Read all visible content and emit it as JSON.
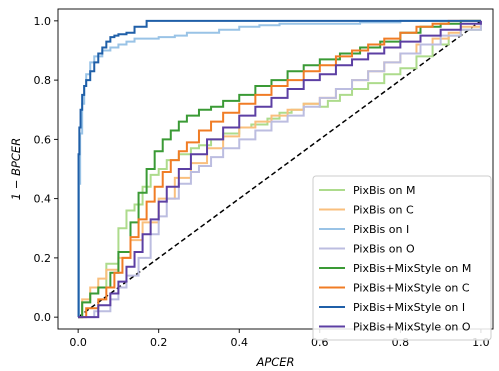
{
  "chart_data": {
    "type": "line",
    "title": "",
    "xlabel": "APCER",
    "ylabel": "1 − BPCER",
    "xlim": [
      -0.05,
      1.03
    ],
    "ylim": [
      -0.04,
      1.04
    ],
    "xticks": [
      0.0,
      0.2,
      0.4,
      0.6,
      0.8,
      1.0
    ],
    "yticks": [
      0.0,
      0.2,
      0.4,
      0.6,
      0.8,
      1.0
    ],
    "grid": false,
    "legend_position": "lower-right",
    "reference_line": {
      "style": "dashed",
      "color": "#000000",
      "x": [
        0,
        1
      ],
      "y": [
        0,
        1
      ]
    },
    "series": [
      {
        "name": "PixBis on M",
        "color": "#addb8c",
        "x": [
          0,
          0.01,
          0.03,
          0.05,
          0.07,
          0.1,
          0.12,
          0.14,
          0.16,
          0.18,
          0.2,
          0.22,
          0.25,
          0.28,
          0.3,
          0.33,
          0.36,
          0.4,
          0.43,
          0.47,
          0.5,
          0.53,
          0.56,
          0.6,
          0.62,
          0.65,
          0.68,
          0.72,
          0.76,
          0.8,
          0.84,
          0.88,
          0.92,
          0.95,
          1.0
        ],
        "y": [
          0,
          0.05,
          0.08,
          0.1,
          0.18,
          0.3,
          0.36,
          0.38,
          0.44,
          0.48,
          0.5,
          0.53,
          0.55,
          0.57,
          0.58,
          0.6,
          0.62,
          0.64,
          0.65,
          0.67,
          0.69,
          0.7,
          0.72,
          0.71,
          0.73,
          0.75,
          0.77,
          0.79,
          0.82,
          0.84,
          0.88,
          0.92,
          0.95,
          0.97,
          1.0
        ]
      },
      {
        "name": "PixBis on C",
        "color": "#f9bf7d",
        "x": [
          0,
          0.01,
          0.03,
          0.05,
          0.07,
          0.1,
          0.13,
          0.16,
          0.2,
          0.24,
          0.28,
          0.32,
          0.36,
          0.4,
          0.44,
          0.48,
          0.52,
          0.56,
          0.6,
          0.64,
          0.68,
          0.72,
          0.76,
          0.8,
          0.84,
          0.88,
          0.92,
          0.95,
          1.0
        ],
        "y": [
          0,
          0.06,
          0.1,
          0.13,
          0.16,
          0.2,
          0.26,
          0.32,
          0.4,
          0.47,
          0.52,
          0.57,
          0.61,
          0.64,
          0.66,
          0.68,
          0.7,
          0.72,
          0.74,
          0.77,
          0.8,
          0.83,
          0.86,
          0.89,
          0.92,
          0.94,
          0.96,
          0.98,
          1.0
        ]
      },
      {
        "name": "PixBis on I",
        "color": "#99c3e6",
        "x": [
          0,
          0.002,
          0.005,
          0.01,
          0.015,
          0.02,
          0.03,
          0.04,
          0.06,
          0.08,
          0.1,
          0.12,
          0.14,
          0.17,
          0.2,
          0.24,
          0.27,
          0.3,
          0.35,
          0.4,
          0.45,
          0.5,
          0.6,
          0.7,
          0.8,
          0.9,
          1.0
        ],
        "y": [
          0,
          0.45,
          0.62,
          0.72,
          0.78,
          0.82,
          0.86,
          0.88,
          0.9,
          0.91,
          0.92,
          0.93,
          0.94,
          0.94,
          0.945,
          0.95,
          0.96,
          0.96,
          0.97,
          0.98,
          0.985,
          0.99,
          0.99,
          0.995,
          1.0,
          1.0,
          1.0
        ]
      },
      {
        "name": "PixBis on O",
        "color": "#bcbde0",
        "x": [
          0,
          0.04,
          0.08,
          0.1,
          0.12,
          0.15,
          0.18,
          0.2,
          0.22,
          0.25,
          0.28,
          0.3,
          0.33,
          0.36,
          0.4,
          0.44,
          0.48,
          0.52,
          0.56,
          0.6,
          0.64,
          0.68,
          0.72,
          0.76,
          0.8,
          0.85,
          0.9,
          0.95,
          1.0
        ],
        "y": [
          0,
          0.02,
          0.06,
          0.1,
          0.14,
          0.2,
          0.28,
          0.34,
          0.4,
          0.45,
          0.49,
          0.51,
          0.54,
          0.57,
          0.6,
          0.63,
          0.66,
          0.68,
          0.71,
          0.74,
          0.77,
          0.8,
          0.83,
          0.86,
          0.89,
          0.92,
          0.95,
          0.97,
          1.0
        ]
      },
      {
        "name": "PixBis+MixStyle on M",
        "color": "#3a9a35",
        "x": [
          0,
          0.01,
          0.03,
          0.05,
          0.08,
          0.1,
          0.13,
          0.15,
          0.17,
          0.19,
          0.21,
          0.23,
          0.25,
          0.27,
          0.3,
          0.33,
          0.36,
          0.4,
          0.44,
          0.48,
          0.52,
          0.56,
          0.6,
          0.65,
          0.7,
          0.75,
          0.8,
          0.85,
          0.9,
          0.95,
          1.0
        ],
        "y": [
          0,
          0.05,
          0.08,
          0.1,
          0.15,
          0.22,
          0.32,
          0.42,
          0.5,
          0.56,
          0.6,
          0.63,
          0.66,
          0.68,
          0.7,
          0.71,
          0.73,
          0.75,
          0.78,
          0.8,
          0.83,
          0.85,
          0.87,
          0.89,
          0.91,
          0.93,
          0.96,
          0.98,
          0.99,
          1.0,
          1.0
        ]
      },
      {
        "name": "PixBis+MixStyle on C",
        "color": "#f07c25",
        "x": [
          0,
          0.02,
          0.05,
          0.07,
          0.09,
          0.11,
          0.13,
          0.15,
          0.17,
          0.19,
          0.21,
          0.23,
          0.25,
          0.27,
          0.3,
          0.33,
          0.36,
          0.4,
          0.44,
          0.48,
          0.52,
          0.56,
          0.6,
          0.64,
          0.68,
          0.72,
          0.76,
          0.8,
          0.84,
          0.88,
          0.92,
          1.0
        ],
        "y": [
          0,
          0.03,
          0.06,
          0.1,
          0.15,
          0.2,
          0.27,
          0.33,
          0.39,
          0.44,
          0.49,
          0.53,
          0.56,
          0.59,
          0.63,
          0.66,
          0.69,
          0.72,
          0.75,
          0.78,
          0.8,
          0.83,
          0.85,
          0.88,
          0.9,
          0.92,
          0.94,
          0.96,
          0.98,
          0.99,
          1.0,
          1.0
        ]
      },
      {
        "name": "PixBis+MixStyle on I",
        "color": "#1f5fa8",
        "x": [
          0,
          0.001,
          0.003,
          0.006,
          0.01,
          0.015,
          0.02,
          0.03,
          0.04,
          0.05,
          0.06,
          0.07,
          0.08,
          0.09,
          0.1,
          0.12,
          0.14,
          0.17,
          0.2,
          0.25,
          0.3,
          0.4,
          0.5,
          0.6,
          0.7,
          0.8,
          0.9,
          1.0
        ],
        "y": [
          0,
          0.55,
          0.64,
          0.7,
          0.75,
          0.78,
          0.8,
          0.83,
          0.86,
          0.89,
          0.91,
          0.93,
          0.945,
          0.95,
          0.955,
          0.96,
          0.98,
          1.0,
          1.0,
          1.0,
          1.0,
          1.0,
          1.0,
          1.0,
          1.0,
          1.0,
          1.0,
          1.0
        ]
      },
      {
        "name": "PixBis+MixStyle on O",
        "color": "#5c3fa3",
        "x": [
          0,
          0.05,
          0.08,
          0.1,
          0.12,
          0.14,
          0.16,
          0.18,
          0.2,
          0.22,
          0.25,
          0.28,
          0.32,
          0.36,
          0.4,
          0.44,
          0.48,
          0.52,
          0.56,
          0.6,
          0.64,
          0.68,
          0.72,
          0.76,
          0.8,
          0.85,
          0.9,
          0.95,
          1.0
        ],
        "y": [
          0,
          0.04,
          0.08,
          0.12,
          0.17,
          0.22,
          0.28,
          0.33,
          0.39,
          0.44,
          0.5,
          0.55,
          0.6,
          0.64,
          0.68,
          0.71,
          0.74,
          0.77,
          0.8,
          0.82,
          0.85,
          0.87,
          0.89,
          0.91,
          0.93,
          0.95,
          0.97,
          0.99,
          1.0
        ]
      }
    ]
  }
}
